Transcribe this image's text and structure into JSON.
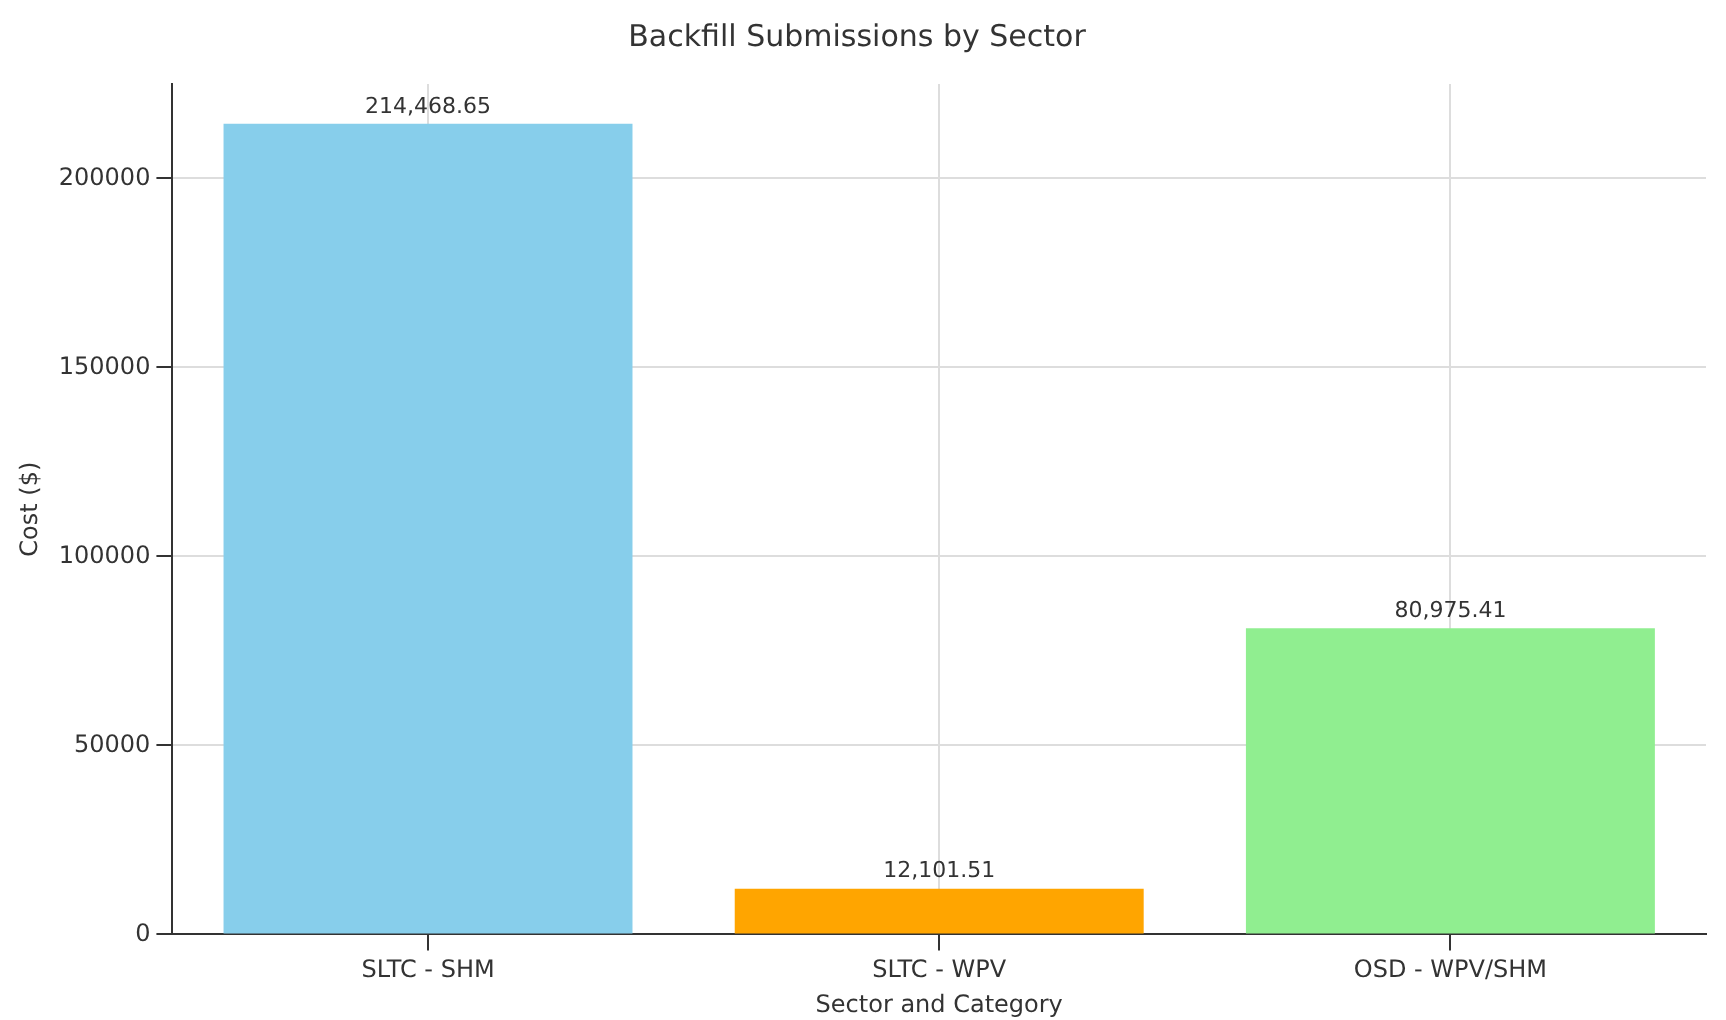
{
  "chart_data": {
    "type": "bar",
    "title": "Backfill Submissions by Sector",
    "xlabel": "Sector and Category",
    "ylabel": "Cost ($)",
    "categories": [
      "SLTC - SHM",
      "SLTC - WPV",
      "OSD - WPV/SHM"
    ],
    "values": [
      214468.65,
      12101.51,
      80975.41
    ],
    "colors": [
      "#87ceeb",
      "#ffa500",
      "#90ee90"
    ],
    "value_labels": [
      "214,468.65",
      "12,101.51",
      "80,975.41"
    ],
    "ylim": [
      0,
      225000
    ],
    "yticks": [
      0,
      50000,
      100000,
      150000,
      200000
    ],
    "grid": true
  }
}
